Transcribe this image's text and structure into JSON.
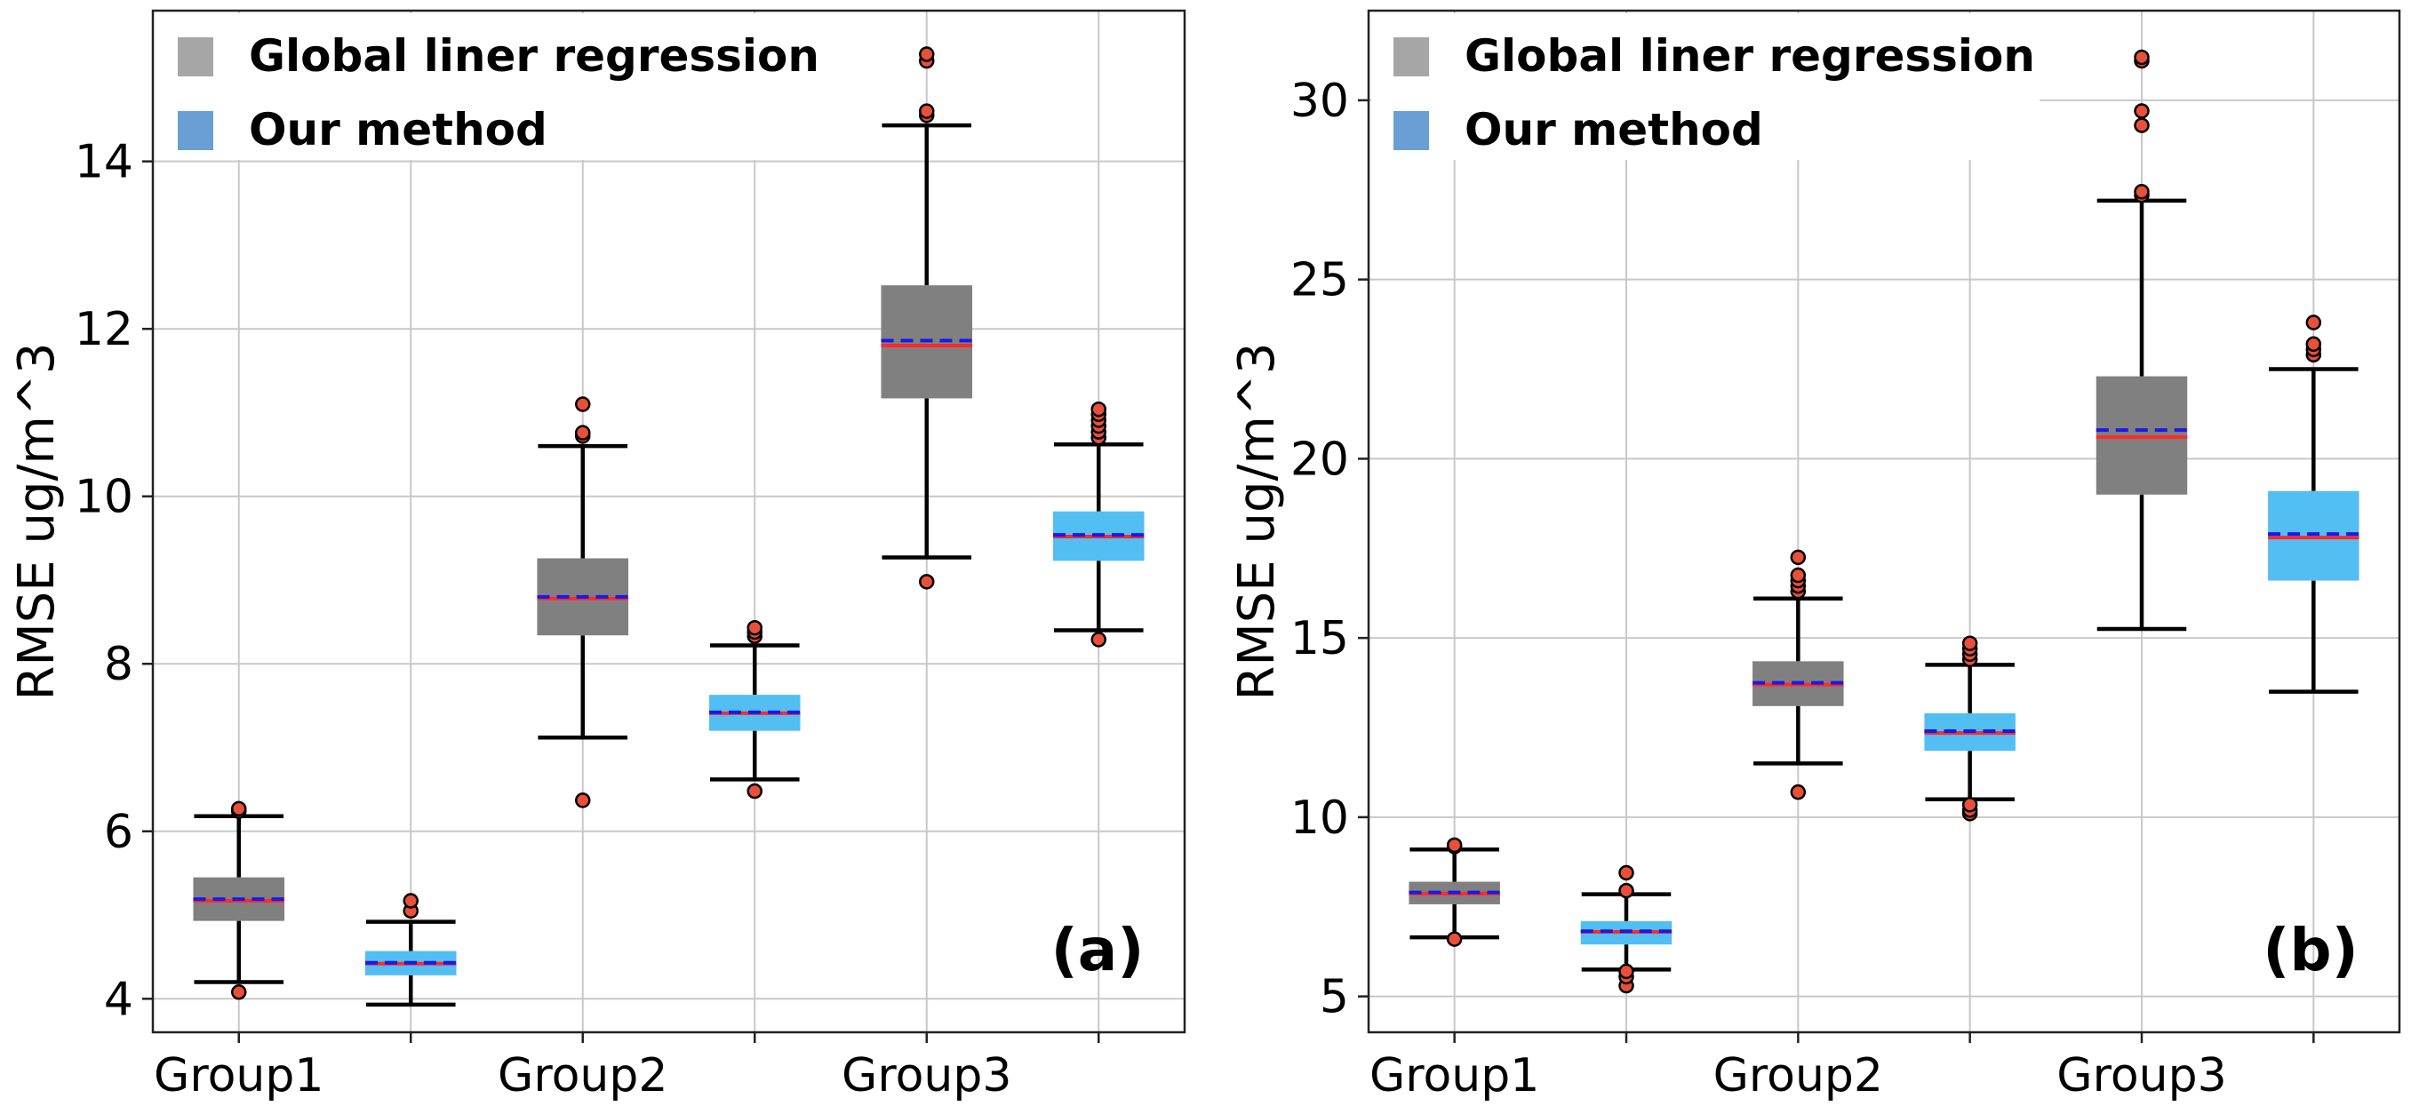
{
  "chart_data": [
    {
      "type": "box",
      "panel_label": "(a)",
      "ylabel": "RMSE ug/m^3",
      "xlabel": "",
      "categories": [
        "Group1",
        "Group2",
        "Group3"
      ],
      "ylim": [
        3.6,
        15.8
      ],
      "yticks": [
        4,
        6,
        8,
        10,
        12,
        14
      ],
      "grid": true,
      "legend_position": "top-left",
      "series": [
        {
          "name": "Global liner regression",
          "color": "#808080",
          "legend_color": "#a6a6a6",
          "boxes": [
            {
              "group": "Group1",
              "whisker_low": 4.2,
              "q1": 4.93,
              "median": 5.17,
              "mean": 5.19,
              "q3": 5.45,
              "whisker_high": 6.18,
              "outliers": [
                4.08,
                6.24,
                6.27
              ]
            },
            {
              "group": "Group2",
              "whisker_low": 7.12,
              "q1": 8.34,
              "median": 8.78,
              "mean": 8.8,
              "q3": 9.26,
              "whisker_high": 10.6,
              "outliers": [
                6.37,
                10.72,
                10.76,
                11.1
              ]
            },
            {
              "group": "Group3",
              "whisker_low": 9.27,
              "q1": 11.17,
              "median": 11.8,
              "mean": 11.86,
              "q3": 12.52,
              "whisker_high": 14.43,
              "outliers": [
                8.98,
                14.55,
                14.6,
                15.2,
                15.28
              ]
            }
          ]
        },
        {
          "name": "Our method",
          "color": "#53bef2",
          "legend_color": "#6a9fd6",
          "boxes": [
            {
              "group": "Group1",
              "whisker_low": 3.93,
              "q1": 4.28,
              "median": 4.42,
              "mean": 4.43,
              "q3": 4.57,
              "whisker_high": 4.92,
              "outliers": [
                5.05,
                5.17
              ]
            },
            {
              "group": "Group2",
              "whisker_low": 6.62,
              "q1": 7.2,
              "median": 7.41,
              "mean": 7.42,
              "q3": 7.63,
              "whisker_high": 8.22,
              "outliers": [
                6.48,
                8.33,
                8.38,
                8.43
              ]
            },
            {
              "group": "Group3",
              "whisker_low": 8.4,
              "q1": 9.23,
              "median": 9.52,
              "mean": 9.54,
              "q3": 9.82,
              "whisker_high": 10.62,
              "outliers": [
                8.29,
                10.7,
                10.77,
                10.84,
                10.91,
                10.98,
                11.04
              ]
            }
          ]
        }
      ]
    },
    {
      "type": "box",
      "panel_label": "(b)",
      "ylabel": "RMSE ug/m^3",
      "xlabel": "",
      "categories": [
        "Group1",
        "Group2",
        "Group3"
      ],
      "ylim": [
        4.0,
        32.5
      ],
      "yticks": [
        5,
        10,
        15,
        20,
        25,
        30
      ],
      "grid": true,
      "legend_position": "top-left",
      "series": [
        {
          "name": "Global liner regression",
          "color": "#808080",
          "legend_color": "#a6a6a6",
          "boxes": [
            {
              "group": "Group1",
              "whisker_low": 6.65,
              "q1": 7.57,
              "median": 7.87,
              "mean": 7.9,
              "q3": 8.2,
              "whisker_high": 9.1,
              "outliers": [
                6.6,
                9.18,
                9.22
              ]
            },
            {
              "group": "Group2",
              "whisker_low": 11.5,
              "q1": 13.1,
              "median": 13.7,
              "mean": 13.75,
              "q3": 14.35,
              "whisker_high": 16.1,
              "outliers": [
                10.7,
                16.3,
                16.45,
                16.6,
                16.75,
                17.25
              ]
            },
            {
              "group": "Group3",
              "whisker_low": 15.25,
              "q1": 19.0,
              "median": 20.6,
              "mean": 20.8,
              "q3": 22.3,
              "whisker_high": 27.2,
              "outliers": [
                27.35,
                27.45,
                29.3,
                29.7,
                31.1,
                31.2
              ]
            }
          ]
        },
        {
          "name": "Our method",
          "color": "#53bef2",
          "legend_color": "#6a9fd6",
          "boxes": [
            {
              "group": "Group1",
              "whisker_low": 5.75,
              "q1": 6.45,
              "median": 6.8,
              "mean": 6.82,
              "q3": 7.1,
              "whisker_high": 7.85,
              "outliers": [
                5.3,
                5.55,
                5.7,
                7.95,
                8.45
              ]
            },
            {
              "group": "Group2",
              "whisker_low": 10.5,
              "q1": 11.85,
              "median": 12.35,
              "mean": 12.4,
              "q3": 12.9,
              "whisker_high": 14.25,
              "outliers": [
                10.1,
                10.2,
                10.35,
                14.4,
                14.55,
                14.7,
                14.85
              ]
            },
            {
              "group": "Group3",
              "whisker_low": 13.5,
              "q1": 16.6,
              "median": 17.8,
              "mean": 17.9,
              "q3": 19.1,
              "whisker_high": 22.5,
              "outliers": [
                22.9,
                23.05,
                23.2,
                23.8
              ]
            }
          ]
        }
      ]
    }
  ]
}
